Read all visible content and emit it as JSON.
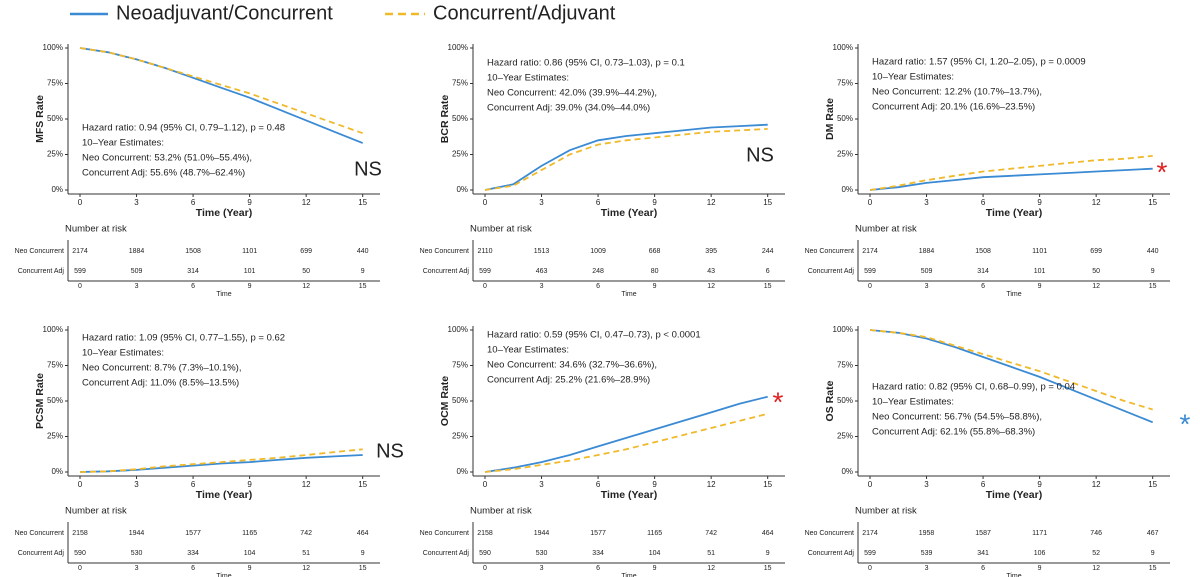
{
  "legend": {
    "series": [
      {
        "name": "Neoadjuvant/Concurrent",
        "color": "#3a8ad4",
        "dash": false
      },
      {
        "name": "Concurrent/Adjuvant",
        "color": "#f0b92a",
        "dash": true
      }
    ]
  },
  "chart_data": [
    {
      "type": "line",
      "ylabel": "MFS Rate",
      "xlabel": "Time (Year)",
      "x": [
        0,
        1.5,
        3,
        4.5,
        6,
        7.5,
        9,
        10.5,
        12,
        13.5,
        15
      ],
      "series": [
        {
          "values": [
            100,
            97,
            92,
            86,
            79,
            72,
            65,
            57,
            49,
            41,
            33
          ]
        },
        {
          "values": [
            100,
            97,
            92,
            86,
            80,
            74,
            68,
            61,
            54,
            47,
            40
          ]
        }
      ],
      "xlim": [
        0,
        15.6
      ],
      "xticks": [
        0,
        3,
        6,
        9,
        12,
        15
      ],
      "ylim": [
        0,
        100
      ],
      "yticks": [
        {
          "value": 0,
          "label": "0%"
        },
        {
          "value": 25,
          "label": "25%"
        },
        {
          "value": 50,
          "label": "50%"
        },
        {
          "value": 75,
          "label": "75%"
        },
        {
          "value": 100,
          "label": "100%"
        }
      ],
      "annotation": [
        "Hazard ratio: 0.94 (95% CI, 0.79–1.12), p = 0.48",
        "10–Year Estimates:",
        "Neo Concurrent: 53.2% (51.0%–55.4%),",
        "Concurrent Adj: 55.6% (48.7%–62.4%)"
      ],
      "significance": {
        "text": "NS",
        "color": "#222222"
      },
      "risk_table": {
        "title": "Number at risk",
        "xlabel": "Time",
        "rows": [
          {
            "label": "Neo Concurrent",
            "values": [
              2174,
              1884,
              1508,
              1101,
              699,
              440
            ]
          },
          {
            "label": "Concurrent Adj",
            "values": [
              599,
              509,
              314,
              101,
              50,
              9
            ]
          }
        ]
      }
    },
    {
      "type": "line",
      "ylabel": "BCR Rate",
      "xlabel": "Time (Year)",
      "x": [
        0,
        1.5,
        3,
        4.5,
        6,
        7.5,
        9,
        10.5,
        12,
        13.5,
        15
      ],
      "series": [
        {
          "values": [
            0,
            4,
            17,
            28,
            35,
            38,
            40,
            42,
            44,
            45,
            46
          ]
        },
        {
          "values": [
            0,
            3,
            14,
            25,
            32,
            35,
            37,
            39,
            41,
            42,
            43
          ]
        }
      ],
      "xlim": [
        0,
        15.6
      ],
      "xticks": [
        0,
        3,
        6,
        9,
        12,
        15
      ],
      "ylim": [
        0,
        100
      ],
      "yticks": [
        {
          "value": 0,
          "label": "0%"
        },
        {
          "value": 25,
          "label": "25%"
        },
        {
          "value": 50,
          "label": "50%"
        },
        {
          "value": 75,
          "label": "75%"
        },
        {
          "value": 100,
          "label": "100%"
        }
      ],
      "annotation": [
        "Hazard ratio: 0.86 (95% CI, 0.73–1.03), p = 0.1",
        "10–Year Estimates:",
        "Neo Concurrent: 42.0% (39.9%–44.2%),",
        "Concurrent Adj: 39.0% (34.0%–44.0%)"
      ],
      "significance": {
        "text": "NS",
        "color": "#222222"
      },
      "risk_table": {
        "title": "Number at risk",
        "xlabel": "Time",
        "rows": [
          {
            "label": "Neo Concurrent",
            "values": [
              2110,
              1513,
              1009,
              668,
              395,
              244
            ]
          },
          {
            "label": "Concurrent Adj",
            "values": [
              599,
              463,
              248,
              80,
              43,
              6
            ]
          }
        ]
      }
    },
    {
      "type": "line",
      "ylabel": "DM Rate",
      "xlabel": "Time (Year)",
      "x": [
        0,
        1.5,
        3,
        4.5,
        6,
        7.5,
        9,
        10.5,
        12,
        13.5,
        15
      ],
      "series": [
        {
          "values": [
            0,
            2,
            5,
            7,
            9,
            10,
            11,
            12,
            13,
            14,
            15
          ]
        },
        {
          "values": [
            0,
            3,
            7,
            10,
            13,
            15,
            17,
            19,
            21,
            22,
            24
          ]
        }
      ],
      "xlim": [
        0,
        15.6
      ],
      "xticks": [
        0,
        3,
        6,
        9,
        12,
        15
      ],
      "ylim": [
        0,
        100
      ],
      "yticks": [
        {
          "value": 0,
          "label": "0%"
        },
        {
          "value": 25,
          "label": "25%"
        },
        {
          "value": 50,
          "label": "50%"
        },
        {
          "value": 75,
          "label": "75%"
        },
        {
          "value": 100,
          "label": "100%"
        }
      ],
      "annotation": [
        "Hazard ratio: 1.57 (95% CI, 1.20–2.05), p = 0.0009",
        "10–Year Estimates:",
        "Neo Concurrent: 12.2% (10.7%–13.7%),",
        "Concurrent Adj: 20.1% (16.6%–23.5%)"
      ],
      "significance": {
        "text": "*",
        "color": "#e02020"
      },
      "risk_table": {
        "title": "Number at risk",
        "xlabel": "Time",
        "rows": [
          {
            "label": "Neo Concurrent",
            "values": [
              2174,
              1884,
              1508,
              1101,
              699,
              440
            ]
          },
          {
            "label": "Concurrent Adj",
            "values": [
              599,
              509,
              314,
              101,
              50,
              9
            ]
          }
        ]
      }
    },
    {
      "type": "line",
      "ylabel": "PCSM Rate",
      "xlabel": "Time (Year)",
      "x": [
        0,
        1.5,
        3,
        4.5,
        6,
        7.5,
        9,
        10.5,
        12,
        13.5,
        15
      ],
      "series": [
        {
          "values": [
            0,
            0.5,
            1.5,
            3,
            4.5,
            6,
            7,
            8.5,
            10,
            11,
            12
          ]
        },
        {
          "values": [
            0,
            0.5,
            2,
            4,
            5.5,
            7,
            8.5,
            10,
            12,
            14,
            16
          ]
        }
      ],
      "xlim": [
        0,
        15.6
      ],
      "xticks": [
        0,
        3,
        6,
        9,
        12,
        15
      ],
      "ylim": [
        0,
        100
      ],
      "yticks": [
        {
          "value": 0,
          "label": "0%"
        },
        {
          "value": 25,
          "label": "25%"
        },
        {
          "value": 50,
          "label": "50%"
        },
        {
          "value": 75,
          "label": "75%"
        },
        {
          "value": 100,
          "label": "100%"
        }
      ],
      "annotation": [
        "Hazard ratio: 1.09 (95% CI, 0.77–1.55), p = 0.62",
        "10–Year Estimates:",
        "Neo Concurrent: 8.7% (7.3%–10.1%),",
        "Concurrent Adj: 11.0% (8.5%–13.5%)"
      ],
      "significance": {
        "text": "NS",
        "color": "#222222"
      },
      "risk_table": {
        "title": "Number at risk",
        "xlabel": "Time",
        "rows": [
          {
            "label": "Neo Concurrent",
            "values": [
              2158,
              1944,
              1577,
              1165,
              742,
              464
            ]
          },
          {
            "label": "Concurrent Adj",
            "values": [
              590,
              530,
              334,
              104,
              51,
              9
            ]
          }
        ]
      }
    },
    {
      "type": "line",
      "ylabel": "OCM Rate",
      "xlabel": "Time (Year)",
      "x": [
        0,
        1.5,
        3,
        4.5,
        6,
        7.5,
        9,
        10.5,
        12,
        13.5,
        15
      ],
      "series": [
        {
          "values": [
            0,
            3,
            7,
            12,
            18,
            24,
            30,
            36,
            42,
            48,
            53
          ]
        },
        {
          "values": [
            0,
            2,
            5,
            8,
            12,
            16,
            21,
            26,
            31,
            36,
            41
          ]
        }
      ],
      "xlim": [
        0,
        15.6
      ],
      "xticks": [
        0,
        3,
        6,
        9,
        12,
        15
      ],
      "ylim": [
        0,
        100
      ],
      "yticks": [
        {
          "value": 0,
          "label": "0%"
        },
        {
          "value": 25,
          "label": "25%"
        },
        {
          "value": 50,
          "label": "50%"
        },
        {
          "value": 75,
          "label": "75%"
        },
        {
          "value": 100,
          "label": "100%"
        }
      ],
      "annotation": [
        "Hazard ratio: 0.59 (95% CI, 0.47–0.73), p < 0.0001",
        "10–Year Estimates:",
        "Neo Concurrent: 34.6% (32.7%–36.6%),",
        "Concurrent Adj: 25.2% (21.6%–28.9%)"
      ],
      "significance": {
        "text": "*",
        "color": "#e02020"
      },
      "risk_table": {
        "title": "Number at risk",
        "xlabel": "Time",
        "rows": [
          {
            "label": "Neo Concurrent",
            "values": [
              2158,
              1944,
              1577,
              1165,
              742,
              464
            ]
          },
          {
            "label": "Concurrent Adj",
            "values": [
              590,
              530,
              334,
              104,
              51,
              9
            ]
          }
        ]
      }
    },
    {
      "type": "line",
      "ylabel": "OS Rate",
      "xlabel": "Time (Year)",
      "x": [
        0,
        1.5,
        3,
        4.5,
        6,
        7.5,
        9,
        10.5,
        12,
        13.5,
        15
      ],
      "series": [
        {
          "values": [
            100,
            98,
            94,
            88,
            81,
            74,
            67,
            59,
            51,
            43,
            35
          ]
        },
        {
          "values": [
            100,
            98,
            95,
            89,
            83,
            77,
            71,
            64,
            57,
            50,
            44
          ]
        }
      ],
      "xlim": [
        0,
        15.6
      ],
      "xticks": [
        0,
        3,
        6,
        9,
        12,
        15
      ],
      "ylim": [
        0,
        100
      ],
      "yticks": [
        {
          "value": 0,
          "label": "0%"
        },
        {
          "value": 25,
          "label": "25%"
        },
        {
          "value": 50,
          "label": "50%"
        },
        {
          "value": 75,
          "label": "75%"
        },
        {
          "value": 100,
          "label": "100%"
        }
      ],
      "annotation": [
        "Hazard ratio: 0.82 (95% CI, 0.68–0.99), p = 0.04",
        "10–Year Estimates:",
        "Neo Concurrent: 56.7% (54.5%–58.8%),",
        "Concurrent Adj: 62.1% (55.8%–68.3%)"
      ],
      "significance": {
        "text": "*",
        "color": "#3a8ad4"
      },
      "risk_table": {
        "title": "Number at risk",
        "xlabel": "Time",
        "rows": [
          {
            "label": "Neo Concurrent",
            "values": [
              2174,
              1958,
              1587,
              1171,
              746,
              467
            ]
          },
          {
            "label": "Concurrent Adj",
            "values": [
              599,
              539,
              341,
              106,
              52,
              9
            ]
          }
        ]
      }
    }
  ]
}
